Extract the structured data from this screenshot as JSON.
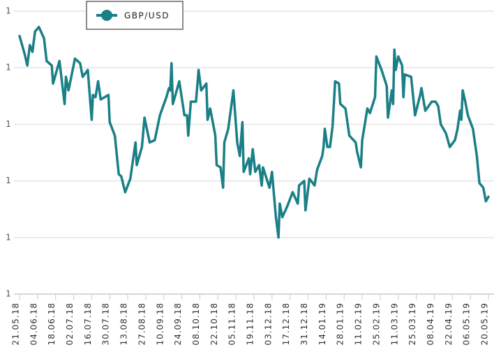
{
  "chart_data": {
    "type": "line",
    "series": [
      {
        "name": "GBP/USD",
        "color": "#1a7f86",
        "values": [
          1.339,
          1.331,
          1.326,
          1.335,
          1.332,
          1.341,
          1.343,
          1.338,
          1.328,
          1.326,
          1.318,
          1.328,
          1.309,
          1.321,
          1.315,
          1.329,
          1.327,
          1.321,
          1.324,
          1.302,
          1.313,
          1.312,
          1.319,
          1.311,
          1.313,
          1.301,
          1.295,
          1.278,
          1.277,
          1.27,
          1.276,
          1.292,
          1.282,
          1.29,
          1.303,
          1.292,
          1.293,
          1.304,
          1.312,
          1.316,
          1.315,
          1.327,
          1.309,
          1.319,
          1.304,
          1.304,
          1.295,
          1.31,
          1.31,
          1.324,
          1.315,
          1.318,
          1.302,
          1.307,
          1.295,
          1.282,
          1.281,
          1.272,
          1.292,
          1.298,
          1.315,
          1.292,
          1.286,
          1.301,
          1.279,
          1.285,
          1.278,
          1.289,
          1.279,
          1.282,
          1.273,
          1.281,
          1.272,
          1.279,
          1.259,
          1.25,
          1.265,
          1.259,
          1.264,
          1.27,
          1.265,
          1.273,
          1.275,
          1.262,
          1.276,
          1.273,
          1.28,
          1.286,
          1.29,
          1.298,
          1.29,
          1.29,
          1.299,
          1.319,
          1.318,
          1.309,
          1.307,
          1.295,
          1.292,
          1.288,
          1.281,
          1.293,
          1.307,
          1.305,
          1.312,
          1.33,
          1.324,
          1.317,
          1.303,
          1.315,
          1.309,
          1.333,
          1.324,
          1.33,
          1.326,
          1.312,
          1.322,
          1.321,
          1.304,
          1.313,
          1.316,
          1.306,
          1.31,
          1.31,
          1.308,
          1.3,
          1.296,
          1.29,
          1.293,
          1.298,
          1.306,
          1.302,
          1.315,
          1.31,
          1.304,
          1.298,
          1.286,
          1.274,
          1.272,
          1.266,
          1.268
        ]
      }
    ],
    "x": [
      "21.05.18",
      "25.05.18",
      "27.05.18",
      "29.05.18",
      "31.05.18",
      "02.06.18",
      "05.06.18",
      "09.06.18",
      "11.06.18",
      "15.06.18",
      "16.06.18",
      "21.06.18",
      "25.06.18",
      "26.06.18",
      "28.06.18",
      "03.07.18",
      "07.07.18",
      "09.07.18",
      "13.07.18",
      "16.07.18",
      "17.07.18",
      "19.07.18",
      "21.07.18",
      "23.07.18",
      "29.07.18",
      "30.07.18",
      "03.08.18",
      "06.08.18",
      "08.08.18",
      "11.08.18",
      "15.08.18",
      "19.08.18",
      "20.08.18",
      "24.08.18",
      "26.08.18",
      "30.08.18",
      "03.09.18",
      "07.09.18",
      "12.09.18",
      "14.09.18",
      "15.09.18",
      "16.09.18",
      "17.09.18",
      "22.09.18",
      "26.09.18",
      "28.09.18",
      "29.09.18",
      "01.10.18",
      "05.10.18",
      "07.10.18",
      "09.10.18",
      "13.10.18",
      "14.10.18",
      "16.10.18",
      "20.10.18",
      "21.10.18",
      "24.10.18",
      "26.10.18",
      "27.10.18",
      "30.10.18",
      "03.11.18",
      "06.11.18",
      "08.11.18",
      "10.11.18",
      "11.11.18",
      "15.11.18",
      "16.11.18",
      "18.11.18",
      "20.11.18",
      "23.11.18",
      "25.11.18",
      "26.11.18",
      "01.12.18",
      "03.12.18",
      "06.12.18",
      "08.12.18",
      "09.12.18",
      "11.12.18",
      "15.12.18",
      "19.12.18",
      "23.12.18",
      "24.12.18",
      "28.12.18",
      "29.12.18",
      "01.01.19",
      "05.01.19",
      "07.01.19",
      "11.01.19",
      "12.01.19",
      "13.01.19",
      "15.01.19",
      "17.01.19",
      "19.01.19",
      "21.01.19",
      "24.01.19",
      "25.01.19",
      "29.01.19",
      "01.02.19",
      "06.02.19",
      "07.02.19",
      "10.02.19",
      "11.02.19",
      "15.02.19",
      "17.02.19",
      "21.02.19",
      "22.02.19",
      "26.02.19",
      "02.03.19",
      "03.03.19",
      "06.03.19",
      "07.03.19",
      "08.03.19",
      "09.03.19",
      "11.03.19",
      "14.03.19",
      "15.03.19",
      "16.03.19",
      "21.03.19",
      "24.03.19",
      "28.03.19",
      "29.03.19",
      "01.04.19",
      "06.04.19",
      "09.04.19",
      "11.04.19",
      "13.04.19",
      "17.04.19",
      "20.04.19",
      "24.04.19",
      "26.04.19",
      "28.04.19",
      "29.04.19",
      "30.04.19",
      "02.05.19",
      "04.05.19",
      "08.05.19",
      "11.05.19",
      "13.05.19",
      "16.05.19",
      "18.05.19",
      "20.05.19"
    ],
    "xticks": [
      "21.05.18",
      "04.06.18",
      "18.06.18",
      "02.07.18",
      "16.07.18",
      "30.07.18",
      "13.08.18",
      "27.08.18",
      "10.09.18",
      "24.09.18",
      "08.10.18",
      "22.10.18",
      "05.11.18",
      "19.11.18",
      "03.12.18",
      "17.12.18",
      "31.12.18",
      "14.01.19",
      "28.01.19",
      "11.02.19",
      "25.02.19",
      "11.03.19",
      "25.03.19",
      "08.04.19",
      "22.04.19",
      "06.05.19",
      "20.05.19"
    ],
    "ylim": [
      1.225,
      1.35
    ],
    "yticks": [
      {
        "value": 1.225,
        "label": "1"
      },
      {
        "value": 1.25,
        "label": "1"
      },
      {
        "value": 1.275,
        "label": "1"
      },
      {
        "value": 1.3,
        "label": "1"
      },
      {
        "value": 1.325,
        "label": "1"
      },
      {
        "value": 1.35,
        "label": "1"
      }
    ],
    "grid": true,
    "legend": "top"
  }
}
